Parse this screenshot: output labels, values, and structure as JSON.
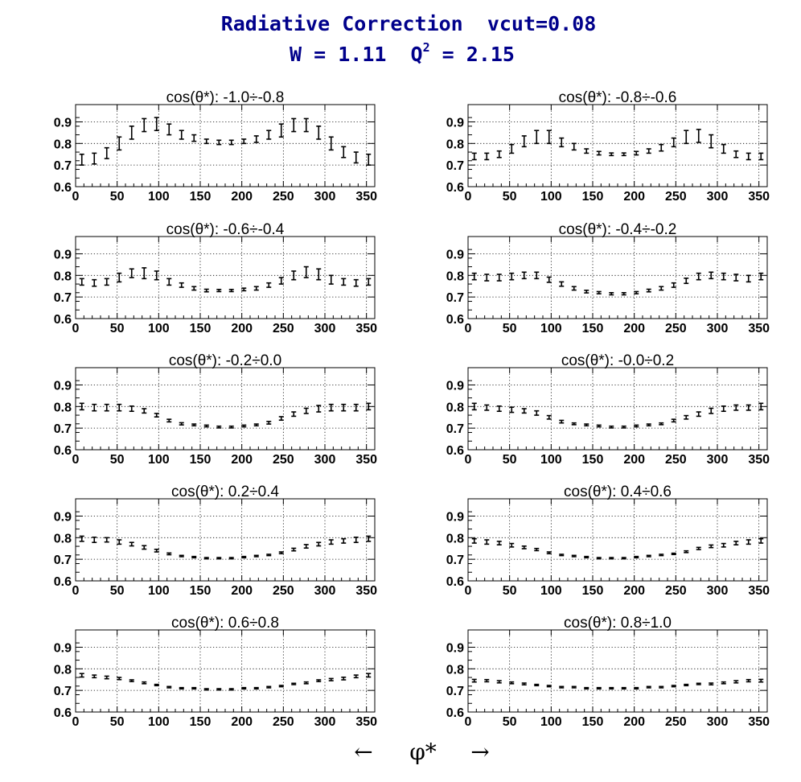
{
  "header": {
    "title_line1": "Radiative Correction  vcut=0.08",
    "title_w": "W = 1.11  Q",
    "title_sup": "2",
    "title_q": " = 2.15"
  },
  "xaxis_label": {
    "left_arrow": "←",
    "symbol": "φ*",
    "right_arrow": "→"
  },
  "chart_data": {
    "type": "scatter",
    "description": "error-bar points, 10 panels",
    "x": [
      7.5,
      22.5,
      37.5,
      52.5,
      67.5,
      82.5,
      97.5,
      112.5,
      127.5,
      142.5,
      157.5,
      172.5,
      187.5,
      202.5,
      217.5,
      232.5,
      247.5,
      262.5,
      277.5,
      292.5,
      307.5,
      322.5,
      337.5,
      352.5
    ],
    "xlim": [
      0,
      360
    ],
    "ylim": [
      0.6,
      0.98
    ],
    "xticks": [
      0,
      50,
      100,
      150,
      200,
      250,
      300,
      350
    ],
    "yticks": [
      0.6,
      0.7,
      0.8,
      0.9
    ],
    "grid": true,
    "panels": [
      {
        "title": "cos(θ*): -1.0÷-0.8",
        "y": [
          0.725,
          0.73,
          0.755,
          0.8,
          0.85,
          0.885,
          0.89,
          0.865,
          0.84,
          0.825,
          0.81,
          0.805,
          0.805,
          0.81,
          0.82,
          0.84,
          0.86,
          0.885,
          0.885,
          0.85,
          0.8,
          0.76,
          0.735,
          0.725
        ],
        "err": [
          0.025,
          0.025,
          0.025,
          0.03,
          0.03,
          0.03,
          0.03,
          0.025,
          0.02,
          0.015,
          0.01,
          0.01,
          0.01,
          0.01,
          0.015,
          0.02,
          0.03,
          0.03,
          0.03,
          0.03,
          0.03,
          0.025,
          0.025,
          0.025
        ]
      },
      {
        "title": "cos(θ*): -0.8÷-0.6",
        "y": [
          0.74,
          0.74,
          0.75,
          0.775,
          0.81,
          0.83,
          0.83,
          0.805,
          0.785,
          0.765,
          0.755,
          0.75,
          0.75,
          0.755,
          0.765,
          0.78,
          0.805,
          0.83,
          0.835,
          0.81,
          0.775,
          0.75,
          0.74,
          0.74
        ],
        "err": [
          0.015,
          0.015,
          0.015,
          0.02,
          0.025,
          0.03,
          0.03,
          0.02,
          0.015,
          0.01,
          0.008,
          0.006,
          0.006,
          0.008,
          0.01,
          0.015,
          0.02,
          0.03,
          0.03,
          0.03,
          0.02,
          0.015,
          0.015,
          0.015
        ]
      },
      {
        "title": "cos(θ*): -0.6÷-0.4",
        "y": [
          0.77,
          0.765,
          0.77,
          0.79,
          0.81,
          0.81,
          0.8,
          0.77,
          0.755,
          0.74,
          0.73,
          0.73,
          0.73,
          0.735,
          0.74,
          0.755,
          0.775,
          0.8,
          0.815,
          0.805,
          0.78,
          0.77,
          0.765,
          0.77
        ],
        "err": [
          0.015,
          0.015,
          0.015,
          0.02,
          0.02,
          0.025,
          0.02,
          0.015,
          0.01,
          0.008,
          0.006,
          0.005,
          0.005,
          0.006,
          0.008,
          0.01,
          0.015,
          0.02,
          0.025,
          0.025,
          0.02,
          0.015,
          0.015,
          0.015
        ]
      },
      {
        "title": "cos(θ*): -0.4÷-0.2",
        "y": [
          0.795,
          0.79,
          0.79,
          0.795,
          0.8,
          0.8,
          0.78,
          0.76,
          0.74,
          0.725,
          0.72,
          0.715,
          0.715,
          0.72,
          0.73,
          0.74,
          0.755,
          0.775,
          0.795,
          0.8,
          0.795,
          0.79,
          0.785,
          0.795
        ],
        "err": [
          0.015,
          0.015,
          0.015,
          0.015,
          0.015,
          0.015,
          0.012,
          0.01,
          0.008,
          0.006,
          0.005,
          0.005,
          0.005,
          0.005,
          0.006,
          0.008,
          0.01,
          0.012,
          0.015,
          0.015,
          0.015,
          0.015,
          0.015,
          0.015
        ]
      },
      {
        "title": "cos(θ*): -0.2÷0.0",
        "y": [
          0.8,
          0.795,
          0.795,
          0.795,
          0.79,
          0.78,
          0.76,
          0.735,
          0.72,
          0.715,
          0.71,
          0.705,
          0.705,
          0.71,
          0.715,
          0.725,
          0.745,
          0.765,
          0.78,
          0.79,
          0.795,
          0.795,
          0.795,
          0.8
        ],
        "err": [
          0.015,
          0.015,
          0.015,
          0.015,
          0.012,
          0.01,
          0.008,
          0.006,
          0.005,
          0.004,
          0.004,
          0.004,
          0.004,
          0.004,
          0.004,
          0.006,
          0.008,
          0.01,
          0.012,
          0.015,
          0.015,
          0.015,
          0.015,
          0.015
        ]
      },
      {
        "title": "cos(θ*): -0.0÷0.2",
        "y": [
          0.8,
          0.795,
          0.79,
          0.785,
          0.78,
          0.77,
          0.75,
          0.73,
          0.72,
          0.715,
          0.71,
          0.705,
          0.705,
          0.71,
          0.715,
          0.72,
          0.735,
          0.75,
          0.765,
          0.78,
          0.79,
          0.795,
          0.795,
          0.8
        ],
        "err": [
          0.015,
          0.012,
          0.012,
          0.012,
          0.01,
          0.01,
          0.008,
          0.006,
          0.004,
          0.004,
          0.004,
          0.004,
          0.004,
          0.004,
          0.004,
          0.004,
          0.006,
          0.008,
          0.01,
          0.012,
          0.012,
          0.012,
          0.012,
          0.015
        ]
      },
      {
        "title": "cos(θ*): 0.2÷0.4",
        "y": [
          0.795,
          0.79,
          0.79,
          0.78,
          0.77,
          0.755,
          0.74,
          0.725,
          0.715,
          0.71,
          0.705,
          0.705,
          0.705,
          0.71,
          0.715,
          0.72,
          0.73,
          0.745,
          0.76,
          0.77,
          0.78,
          0.785,
          0.79,
          0.795
        ],
        "err": [
          0.012,
          0.012,
          0.01,
          0.01,
          0.008,
          0.008,
          0.006,
          0.004,
          0.003,
          0.003,
          0.003,
          0.003,
          0.003,
          0.003,
          0.003,
          0.003,
          0.004,
          0.006,
          0.008,
          0.008,
          0.01,
          0.01,
          0.012,
          0.012
        ]
      },
      {
        "title": "cos(θ*): 0.4÷0.6",
        "y": [
          0.785,
          0.78,
          0.775,
          0.765,
          0.755,
          0.745,
          0.73,
          0.72,
          0.715,
          0.71,
          0.705,
          0.705,
          0.705,
          0.71,
          0.715,
          0.72,
          0.725,
          0.735,
          0.75,
          0.76,
          0.765,
          0.775,
          0.78,
          0.785
        ],
        "err": [
          0.01,
          0.01,
          0.008,
          0.008,
          0.006,
          0.005,
          0.004,
          0.003,
          0.003,
          0.003,
          0.003,
          0.003,
          0.003,
          0.003,
          0.003,
          0.003,
          0.003,
          0.004,
          0.005,
          0.006,
          0.008,
          0.008,
          0.01,
          0.01
        ]
      },
      {
        "title": "cos(θ*): 0.6÷0.8",
        "y": [
          0.77,
          0.765,
          0.76,
          0.755,
          0.745,
          0.735,
          0.725,
          0.715,
          0.71,
          0.71,
          0.705,
          0.705,
          0.705,
          0.71,
          0.71,
          0.715,
          0.72,
          0.73,
          0.735,
          0.745,
          0.75,
          0.755,
          0.765,
          0.77
        ],
        "err": [
          0.008,
          0.006,
          0.006,
          0.005,
          0.004,
          0.004,
          0.003,
          0.003,
          0.003,
          0.003,
          0.003,
          0.003,
          0.003,
          0.003,
          0.003,
          0.003,
          0.003,
          0.003,
          0.004,
          0.004,
          0.005,
          0.006,
          0.006,
          0.008
        ]
      },
      {
        "title": "cos(θ*): 0.8÷1.0",
        "y": [
          0.745,
          0.745,
          0.74,
          0.735,
          0.73,
          0.725,
          0.72,
          0.715,
          0.715,
          0.71,
          0.71,
          0.71,
          0.71,
          0.71,
          0.715,
          0.715,
          0.72,
          0.725,
          0.73,
          0.73,
          0.735,
          0.74,
          0.745,
          0.745
        ],
        "err": [
          0.006,
          0.005,
          0.005,
          0.004,
          0.004,
          0.003,
          0.003,
          0.003,
          0.003,
          0.003,
          0.003,
          0.003,
          0.003,
          0.003,
          0.003,
          0.003,
          0.003,
          0.003,
          0.003,
          0.004,
          0.004,
          0.005,
          0.005,
          0.006
        ]
      }
    ]
  }
}
